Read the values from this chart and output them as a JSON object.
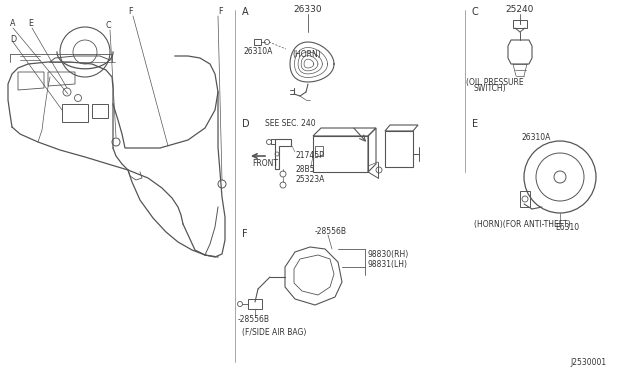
{
  "bg_color": "#ffffff",
  "line_color": "#555555",
  "text_color": "#333333",
  "divider_color": "#aaaaaa",
  "fs_label": 7.0,
  "fs_part": 6.5,
  "fs_small": 5.8,
  "fs_tiny": 5.5,
  "part_number_bottom_right": "J2530001",
  "A_label": "A",
  "horn_part": "26330",
  "horn_label": "(HORN)",
  "connector_part": "26310A",
  "C_label": "C",
  "oil_switch_part": "25240",
  "oil_switch_label1": "(OIL PRESSURE",
  "oil_switch_label2": "SWITCH)",
  "D_label": "D",
  "see_sec": "SEE SEC. 240",
  "part_21745P": "21745P",
  "part_28485": "28B5",
  "part_25323A": "25323A",
  "front_label": "FRONT",
  "E_label": "E",
  "horn_anti_theft_label": "(HORN)(FOR ANTI-THEFT)",
  "part_26310": "E6310",
  "part_26310A_e": "26310A",
  "F_label": "F",
  "airbag_part1": "-28556B",
  "airbag_part2": "-28556B",
  "airbag_label": "(F/SIDE AIR BAG)",
  "part_98830": "98830(RH)",
  "part_98831": "98831(LH)"
}
